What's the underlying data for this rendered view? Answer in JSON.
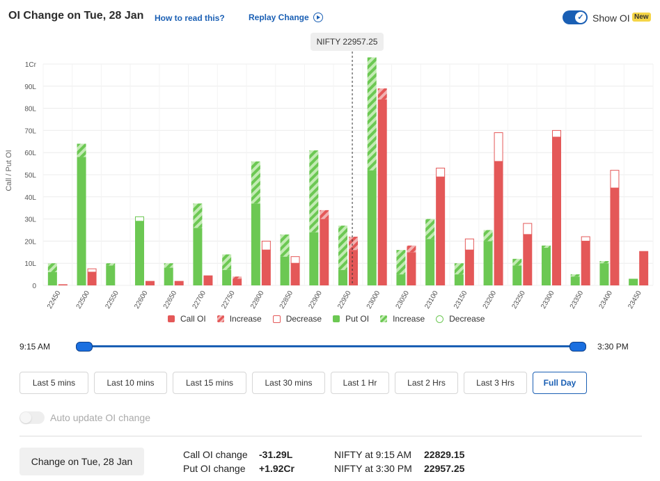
{
  "header": {
    "title": "OI Change on Tue, 28 Jan",
    "how_to_read": "How to read this?",
    "replay": "Replay Change",
    "show_oi_label": "Show OI",
    "new_badge": "New"
  },
  "tooltip": {
    "text": "NIFTY 22957.25"
  },
  "legend": [
    {
      "label": "Call OI",
      "kind": "call-solid"
    },
    {
      "label": "Increase",
      "kind": "call-hatch"
    },
    {
      "label": "Decrease",
      "kind": "call-outline"
    },
    {
      "label": "Put OI",
      "kind": "put-solid"
    },
    {
      "label": "Increase",
      "kind": "put-hatch"
    },
    {
      "label": "Decrease",
      "kind": "put-outline"
    }
  ],
  "colors": {
    "call": "#e45858",
    "put": "#6cc853",
    "call_hatch_light": "#f2b2b2",
    "put_hatch_light": "#c3ebb4",
    "accent": "#1a5fb4"
  },
  "chart_data": {
    "type": "bar",
    "ylabel": "Call / Put OI",
    "y_unit_note": "values in lakh (L); 100L = 1Cr",
    "ylim": [
      0,
      100
    ],
    "yticks": [
      "0",
      "10L",
      "20L",
      "30L",
      "40L",
      "50L",
      "60L",
      "70L",
      "80L",
      "90L",
      "1Cr"
    ],
    "grid": true,
    "spot_marker": 22957.25,
    "categories": [
      "22450",
      "22500",
      "22550",
      "22600",
      "22650",
      "22700",
      "22750",
      "22800",
      "22850",
      "22900",
      "22950",
      "23000",
      "23050",
      "23100",
      "23150",
      "23200",
      "23250",
      "23300",
      "23350",
      "23400",
      "23450"
    ],
    "series": [
      {
        "name": "Put OI",
        "base": [
          6,
          58,
          9,
          29,
          8,
          26,
          7,
          37,
          13,
          24,
          7,
          52,
          5,
          21,
          5,
          20,
          9,
          17,
          4,
          10,
          3
        ],
        "increase": [
          4,
          6,
          1,
          0,
          2,
          11,
          7,
          19,
          10,
          37,
          20,
          51,
          11,
          9,
          5,
          5,
          3,
          1,
          1,
          1,
          0
        ],
        "decrease": [
          0,
          0,
          0,
          2,
          0,
          0,
          0,
          0,
          0,
          0,
          0,
          0,
          0,
          0,
          0,
          0,
          0,
          0,
          0,
          0,
          0
        ]
      },
      {
        "name": "Call OI",
        "base": [
          0.5,
          6,
          0,
          2,
          2,
          4.5,
          3,
          16,
          10,
          30,
          16,
          84,
          15,
          49,
          16,
          56,
          23,
          67,
          20,
          44,
          15.5
        ],
        "increase": [
          0,
          0,
          0,
          0,
          0,
          0,
          1,
          0,
          0,
          4,
          6,
          5,
          3,
          0,
          0,
          0,
          0,
          0,
          0,
          0,
          0
        ],
        "decrease": [
          0,
          1.5,
          0,
          0,
          0,
          0,
          0,
          4,
          3,
          0,
          0,
          0,
          0,
          4,
          5,
          13,
          5,
          3,
          2,
          8,
          0
        ]
      }
    ]
  },
  "time_range": {
    "start": "9:15 AM",
    "end": "3:30 PM"
  },
  "buttons": {
    "b0": "Last 5 mins",
    "b1": "Last 10 mins",
    "b2": "Last 15 mins",
    "b3": "Last 30 mins",
    "b4": "Last 1 Hr",
    "b5": "Last 2 Hrs",
    "b6": "Last 3 Hrs",
    "b7": "Full Day"
  },
  "active_button": "Full Day",
  "auto_update": {
    "label": "Auto update OI change",
    "enabled": false
  },
  "summary": {
    "change_button": "Change on Tue, 28 Jan",
    "call_label": "Call OI change",
    "call_value": "-31.29L",
    "put_label": "Put OI change",
    "put_value": "+1.92Cr",
    "nifty_open_label": "NIFTY at 9:15 AM",
    "nifty_open_value": "22829.15",
    "nifty_close_label": "NIFTY at 3:30 PM",
    "nifty_close_value": "22957.25"
  }
}
